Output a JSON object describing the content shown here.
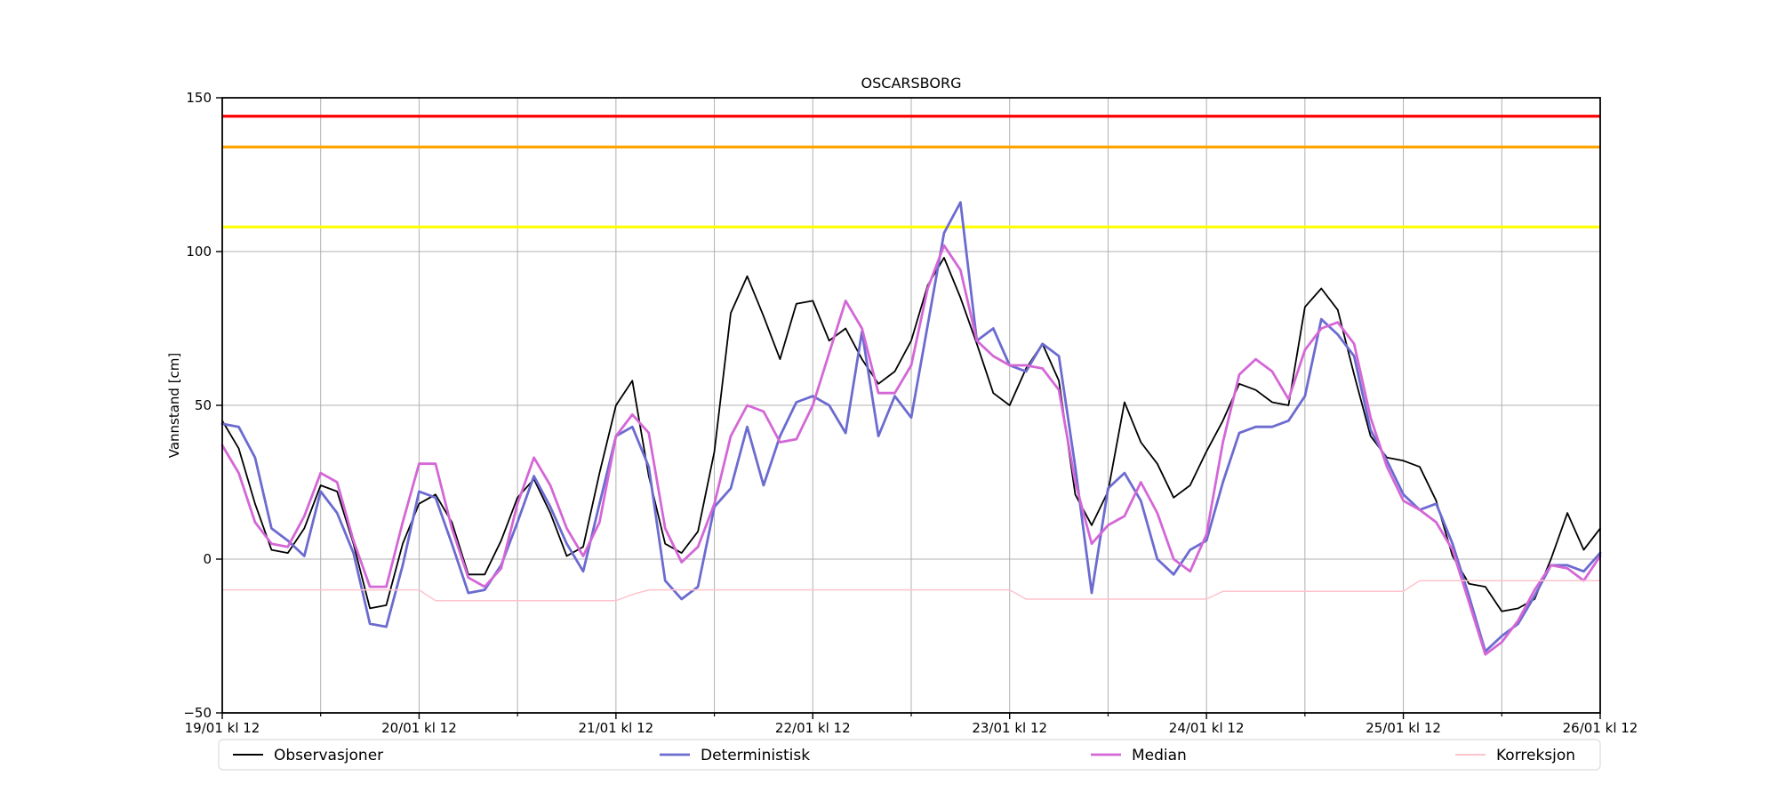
{
  "chart_data": {
    "type": "line",
    "title": "OSCARSBORG",
    "ylabel": "Vannstand [cm]",
    "xlim_hours": [
      0,
      168
    ],
    "ylim": [
      -50,
      150
    ],
    "x_tick_hours_step": 24,
    "minor_grid_step_hours": 12,
    "sample_step_hours": 2,
    "x_start_label": "19/01 kl 12",
    "x_tick_labels": [
      "19/01 kl 12",
      "20/01 kl 12",
      "21/01 kl 12",
      "22/01 kl 12",
      "23/01 kl 12",
      "24/01 kl 12",
      "25/01 kl 12",
      "26/01 kl 12"
    ],
    "y_ticks": [
      -50,
      0,
      50,
      100,
      150
    ],
    "y_tick_labels": [
      "−50",
      "0",
      "50",
      "100",
      "150"
    ],
    "grid_color": "#b0b0b0",
    "thresholds": [
      {
        "name": "red",
        "color": "#ff0000",
        "value": 144
      },
      {
        "name": "orange",
        "color": "#ffa500",
        "value": 134
      },
      {
        "name": "yellow",
        "color": "#ffff00",
        "value": 108
      }
    ],
    "series": [
      {
        "name": "Observasjoner",
        "color": "#000000",
        "width": 1.8,
        "values": [
          45,
          36,
          18,
          3,
          2,
          10,
          24,
          22,
          5,
          -16,
          -15,
          5,
          18,
          21,
          12,
          -5,
          -5,
          6,
          20,
          26,
          15,
          1,
          4,
          28,
          50,
          58,
          27,
          5,
          2,
          9,
          35,
          80,
          92,
          79,
          65,
          83,
          84,
          71,
          75,
          65,
          57,
          61,
          71,
          89,
          98,
          85,
          70,
          54,
          50,
          62,
          70,
          58,
          21,
          11,
          22,
          51,
          38,
          31,
          20,
          24,
          35,
          45,
          57,
          55,
          51,
          50,
          82,
          88,
          81,
          60,
          40,
          33,
          32,
          30,
          19,
          1,
          -8,
          -9,
          -17,
          -16,
          -13,
          0,
          15,
          3,
          10
        ]
      },
      {
        "name": "Deterministisk",
        "color": "#6c6bd0",
        "width": 2.8,
        "values": [
          44,
          43,
          33,
          10,
          6,
          1,
          22,
          15,
          2,
          -21,
          -22,
          -2,
          22,
          20,
          5,
          -11,
          -10,
          -2,
          12,
          27,
          17,
          5,
          -4,
          18,
          40,
          43,
          30,
          -7,
          -13,
          -9,
          17,
          23,
          43,
          24,
          40,
          51,
          53,
          50,
          41,
          74,
          40,
          53,
          46,
          76,
          106,
          116,
          71,
          75,
          63,
          61,
          70,
          66,
          30,
          -11,
          23,
          28,
          19,
          0,
          -5,
          3,
          6,
          25,
          41,
          43,
          43,
          45,
          53,
          78,
          73,
          66,
          42,
          32,
          21,
          16,
          18,
          5,
          -12,
          -30,
          -25,
          -21,
          -12,
          -2,
          -2,
          -4,
          2
        ]
      },
      {
        "name": "Median",
        "color": "#d467d6",
        "width": 2.8,
        "values": [
          37,
          28,
          12,
          5,
          4,
          14,
          28,
          25,
          6,
          -9,
          -9,
          12,
          31,
          31,
          10,
          -6,
          -9,
          -3,
          18,
          33,
          24,
          10,
          1,
          12,
          40,
          47,
          41,
          10,
          -1,
          4,
          18,
          40,
          50,
          48,
          38,
          39,
          50,
          67,
          84,
          75,
          54,
          54,
          63,
          88,
          102,
          94,
          71,
          66,
          63,
          63,
          62,
          55,
          25,
          5,
          11,
          14,
          25,
          15,
          0,
          -4,
          8,
          38,
          60,
          65,
          61,
          52,
          68,
          75,
          77,
          70,
          46,
          30,
          19,
          16,
          12,
          3,
          -14,
          -31,
          -27,
          -20,
          -10,
          -2,
          -3,
          -7,
          1
        ]
      },
      {
        "name": "Korreksjon",
        "color": "#ffc3cd",
        "width": 1.5,
        "values": [
          -10,
          -10,
          -10,
          -10,
          -10,
          -10,
          -10,
          -10,
          -10,
          -10,
          -10,
          -10,
          -10,
          -13.5,
          -13.5,
          -13.5,
          -13.5,
          -13.5,
          -13.5,
          -13.5,
          -13.5,
          -13.5,
          -13.5,
          -13.5,
          -13.5,
          -11.5,
          -10,
          -10,
          -10,
          -10,
          -10,
          -10,
          -10,
          -10,
          -10,
          -10,
          -10,
          -10,
          -10,
          -10,
          -10,
          -10,
          -10,
          -10,
          -10,
          -10,
          -10,
          -10,
          -10,
          -13,
          -13,
          -13,
          -13,
          -13,
          -13,
          -13,
          -13,
          -13,
          -13,
          -13,
          -13,
          -10.5,
          -10.5,
          -10.5,
          -10.5,
          -10.5,
          -10.5,
          -10.5,
          -10.5,
          -10.5,
          -10.5,
          -10.5,
          -10.5,
          -7,
          -7,
          -7,
          -7,
          -7,
          -7,
          -7,
          -7,
          -7,
          -7,
          -7,
          -7
        ]
      }
    ],
    "legend": [
      "Observasjoner",
      "Deterministisk",
      "Median",
      "Korreksjon"
    ],
    "legend_position": "bottom"
  }
}
